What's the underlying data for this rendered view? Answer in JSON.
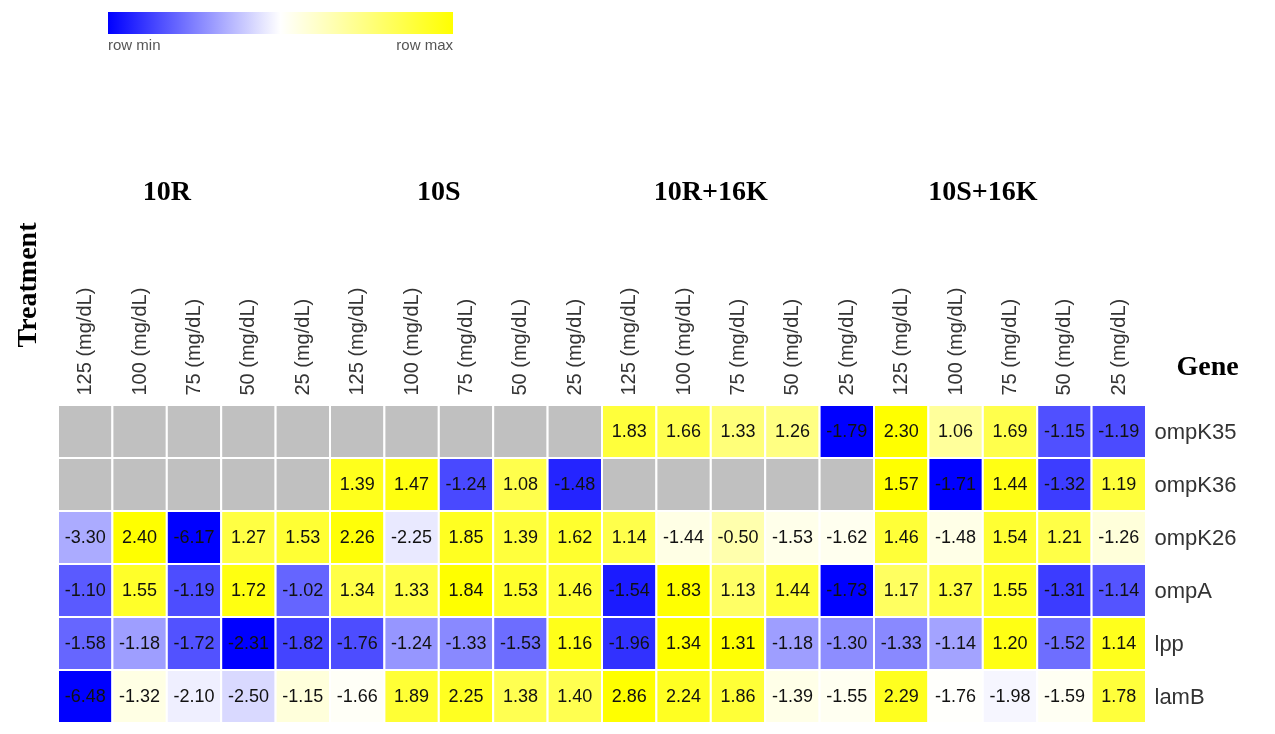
{
  "chart_data": {
    "type": "heatmap",
    "ylabel": "Gene",
    "annotations": [
      "row min",
      "row max",
      "Treatment",
      "10R",
      "10S",
      "10R+16K",
      "10S+16K"
    ],
    "categories": [
      "125 (mg/dL)",
      "100 (mg/dL)",
      "75 (mg/dL)",
      "50 (mg/dL)",
      "25 (mg/dL)",
      "125 (mg/dL)",
      "100 (mg/dL)",
      "75 (mg/dL)",
      "50 (mg/dL)",
      "25 (mg/dL)",
      "125 (mg/dL)",
      "100 (mg/dL)",
      "75 (mg/dL)",
      "50 (mg/dL)",
      "25 (mg/dL)",
      "125 (mg/dL)",
      "100 (mg/dL)",
      "75 (mg/dL)",
      "50 (mg/dL)",
      "25 (mg/dL)"
    ],
    "y_categories": [
      "ompK35",
      "ompK36",
      "ompK26",
      "ompA",
      "lpp",
      "lamB"
    ],
    "cells": [
      [
        null,
        null,
        null,
        null,
        null,
        null,
        null,
        null,
        null,
        null,
        1.83,
        1.66,
        1.33,
        1.26,
        -1.79,
        2.3,
        1.06,
        1.69,
        -1.15,
        -1.19
      ],
      [
        null,
        null,
        null,
        null,
        null,
        1.39,
        1.47,
        -1.24,
        1.08,
        -1.48,
        null,
        null,
        null,
        null,
        null,
        1.57,
        -1.71,
        1.44,
        -1.32,
        1.19
      ],
      [
        -3.3,
        2.4,
        -6.17,
        1.27,
        1.53,
        2.26,
        -2.25,
        1.85,
        1.39,
        1.62,
        1.14,
        -1.44,
        -0.5,
        -1.53,
        -1.62,
        1.46,
        -1.48,
        1.54,
        1.21,
        -1.26
      ],
      [
        -1.1,
        1.55,
        -1.19,
        1.72,
        -1.02,
        1.34,
        1.33,
        1.84,
        1.53,
        1.46,
        -1.54,
        1.83,
        1.13,
        1.44,
        -1.73,
        1.17,
        1.37,
        1.55,
        -1.31,
        -1.14
      ],
      [
        -1.58,
        -1.18,
        -1.72,
        -2.31,
        -1.82,
        -1.76,
        -1.24,
        -1.33,
        -1.53,
        1.16,
        -1.96,
        1.34,
        1.31,
        -1.18,
        -1.3,
        -1.33,
        -1.14,
        1.2,
        -1.52,
        1.14
      ],
      [
        -6.48,
        -1.32,
        -2.1,
        -2.5,
        -1.15,
        -1.66,
        1.89,
        2.25,
        1.38,
        1.4,
        2.86,
        2.24,
        1.86,
        -1.39,
        -1.55,
        2.29,
        -1.76,
        -1.98,
        -1.59,
        1.78
      ]
    ],
    "cell_labels": [
      [
        null,
        null,
        null,
        null,
        null,
        null,
        null,
        null,
        null,
        null,
        "1.83",
        "1.66",
        "1.33",
        "1.26",
        "-1.79",
        "2.30",
        "1.06",
        "1.69",
        "-1.15",
        "-1.19"
      ],
      [
        null,
        null,
        null,
        null,
        null,
        "1.39",
        "1.47",
        "-1.24",
        "1.08",
        "-1.48",
        null,
        null,
        null,
        null,
        null,
        "1.57",
        "-1.71",
        "1.44",
        "-1.32",
        "1.19"
      ],
      [
        "-3.30",
        "2.40",
        "-6.17",
        "1.27",
        "1.53",
        "2.26",
        "-2.25",
        "1.85",
        "1.39",
        "1.62",
        "1.14",
        "-1.44",
        "-0.50",
        "-1.53",
        "-1.62",
        "1.46",
        "-1.48",
        "1.54",
        "1.21",
        "-1.26"
      ],
      [
        "-1.10",
        "1.55",
        "-1.19",
        "1.72",
        "-1.02",
        "1.34",
        "1.33",
        "1.84",
        "1.53",
        "1.46",
        "-1.54",
        "1.83",
        "1.13",
        "1.44",
        "-1.73",
        "1.17",
        "1.37",
        "1.55",
        "-1.31",
        "-1.14"
      ],
      [
        "-1.58",
        "-1.18",
        "-1.72",
        "-2.31",
        "-1.82",
        "-1.76",
        "-1.24",
        "-1.33",
        "-1.53",
        "1.16",
        "-1.96",
        "1.34",
        "1.31",
        "-1.18",
        "-1.30",
        "-1.33",
        "-1.14",
        "1.20",
        "-1.52",
        "1.14"
      ],
      [
        "-6.48",
        "-1.32",
        "-2.10",
        "-2.50",
        "-1.15",
        "-1.66",
        "1.89",
        "2.25",
        "1.38",
        "1.40",
        "2.86",
        "2.24",
        "1.86",
        "-1.39",
        "-1.55",
        "2.29",
        "-1.76",
        "-1.98",
        "-1.59",
        "1.78"
      ]
    ]
  }
}
